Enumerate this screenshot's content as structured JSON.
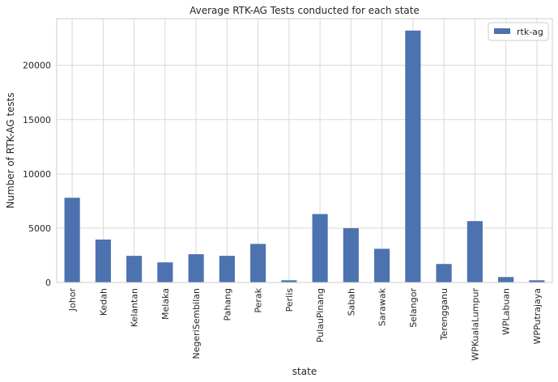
{
  "chart_data": {
    "type": "bar",
    "title": "Average RTK-AG Tests conducted for each state",
    "xlabel": "state",
    "ylabel": "Number of RTK-AG tests",
    "categories": [
      "Johor",
      "Kedah",
      "Kelantan",
      "Melaka",
      "NegeriSembilan",
      "Pahang",
      "Perak",
      "Perlis",
      "PulauPinang",
      "Sabah",
      "Sarawak",
      "Selangor",
      "Terengganu",
      "WPKualaLumpur",
      "WPLabuan",
      "WPPutrajaya"
    ],
    "series": [
      {
        "name": "rtk-ag",
        "values": [
          7800,
          3950,
          2450,
          1850,
          2600,
          2450,
          3550,
          200,
          6300,
          5000,
          3100,
          23200,
          1700,
          5650,
          500,
          200
        ]
      }
    ],
    "ylim": [
      0,
      24300
    ],
    "yticks": [
      0,
      5000,
      10000,
      15000,
      20000
    ],
    "grid": true,
    "legend_position": "top-right",
    "colors": {
      "bar": "#4c72b0",
      "grid": "#d9d9d9",
      "axes": "#cccccc"
    }
  }
}
